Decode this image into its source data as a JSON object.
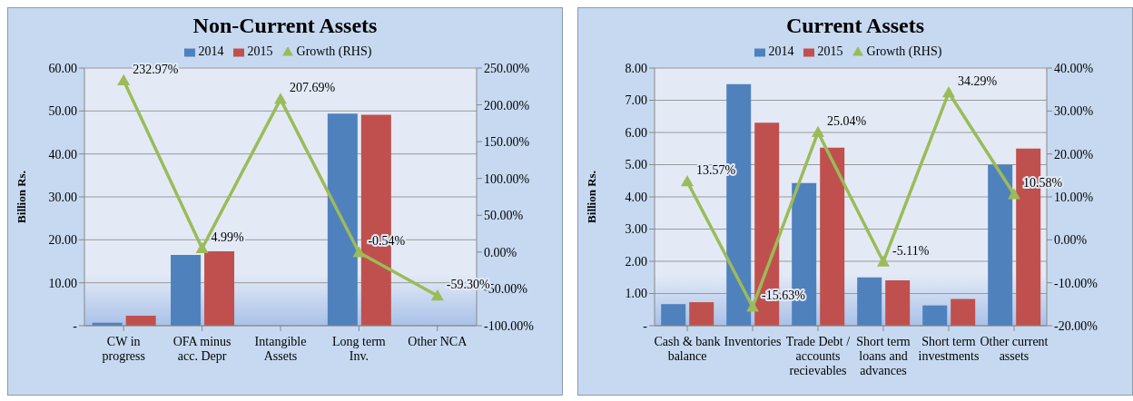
{
  "chart_data": [
    {
      "type": "bar",
      "title": "Non-Current Assets",
      "ylabel": "Billion Rs.",
      "categories": [
        "CW in progress",
        "OFA minus acc. Depr",
        "Intangible Assets",
        "Long term Inv.",
        "Other NCA"
      ],
      "series": [
        {
          "name": "2014",
          "color": "#4f81bd",
          "values": [
            0.7,
            16.5,
            null,
            49.4,
            null
          ]
        },
        {
          "name": "2015",
          "color": "#c0504d",
          "values": [
            2.3,
            17.3,
            null,
            49.1,
            null
          ]
        },
        {
          "name": "Growth (RHS)",
          "type": "line",
          "axis": "y2",
          "color": "#9bbb59",
          "marker": "triangle",
          "values": [
            232.97,
            4.99,
            207.69,
            -0.54,
            -59.3
          ],
          "value_labels": [
            "232.97%",
            "4.99%",
            "207.69%",
            "-0.54%",
            "-59.30%"
          ]
        }
      ],
      "ylim": [
        0,
        60
      ],
      "yticks": [
        {
          "value": 0,
          "label": "-"
        },
        {
          "value": 10,
          "label": "10.00"
        },
        {
          "value": 20,
          "label": "20.00"
        },
        {
          "value": 30,
          "label": "30.00"
        },
        {
          "value": 40,
          "label": "40.00"
        },
        {
          "value": 50,
          "label": "50.00"
        },
        {
          "value": 60,
          "label": "60.00"
        }
      ],
      "y2lim": [
        -100,
        250
      ],
      "y2ticks": [
        {
          "value": -100,
          "label": "-100.00%"
        },
        {
          "value": -50,
          "label": "-50.00%"
        },
        {
          "value": 0,
          "label": "0.00%"
        },
        {
          "value": 50,
          "label": "50.00%"
        },
        {
          "value": 100,
          "label": "100.00%"
        },
        {
          "value": 150,
          "label": "150.00%"
        },
        {
          "value": 200,
          "label": "200.00%"
        },
        {
          "value": 250,
          "label": "250.00%"
        }
      ],
      "grid": "y",
      "legend": "top"
    },
    {
      "type": "bar",
      "title": "Current Assets",
      "ylabel": "Billion Rs.",
      "categories": [
        "Cash & bank balance",
        "Inventories",
        "Trade Debt / accounts recievables",
        "Short term loans and advances",
        "Short term investments",
        "Other current assets"
      ],
      "series": [
        {
          "name": "2014",
          "color": "#4f81bd",
          "values": [
            0.67,
            7.5,
            4.43,
            1.5,
            0.63,
            5.0
          ]
        },
        {
          "name": "2015",
          "color": "#c0504d",
          "values": [
            0.73,
            6.3,
            5.53,
            1.41,
            0.83,
            5.5
          ]
        },
        {
          "name": "Growth (RHS)",
          "type": "line",
          "axis": "y2",
          "color": "#9bbb59",
          "marker": "triangle",
          "values": [
            13.57,
            -15.63,
            25.04,
            -5.11,
            34.29,
            10.58
          ],
          "value_labels": [
            "13.57%",
            "-15.63%",
            "25.04%",
            "-5.11%",
            "34.29%",
            "10.58%"
          ]
        }
      ],
      "ylim": [
        0,
        8
      ],
      "yticks": [
        {
          "value": 0,
          "label": "-"
        },
        {
          "value": 1,
          "label": "1.00"
        },
        {
          "value": 2,
          "label": "2.00"
        },
        {
          "value": 3,
          "label": "3.00"
        },
        {
          "value": 4,
          "label": "4.00"
        },
        {
          "value": 5,
          "label": "5.00"
        },
        {
          "value": 6,
          "label": "6.00"
        },
        {
          "value": 7,
          "label": "7.00"
        },
        {
          "value": 8,
          "label": "8.00"
        }
      ],
      "y2lim": [
        -20,
        40
      ],
      "y2ticks": [
        {
          "value": -20,
          "label": "-20.00%"
        },
        {
          "value": -10,
          "label": "-10.00%"
        },
        {
          "value": 0,
          "label": "0.00%"
        },
        {
          "value": 10,
          "label": "10.00%"
        },
        {
          "value": 20,
          "label": "20.00%"
        },
        {
          "value": 30,
          "label": "30.00%"
        },
        {
          "value": 40,
          "label": "40.00%"
        }
      ],
      "grid": "y",
      "legend": "top"
    }
  ]
}
